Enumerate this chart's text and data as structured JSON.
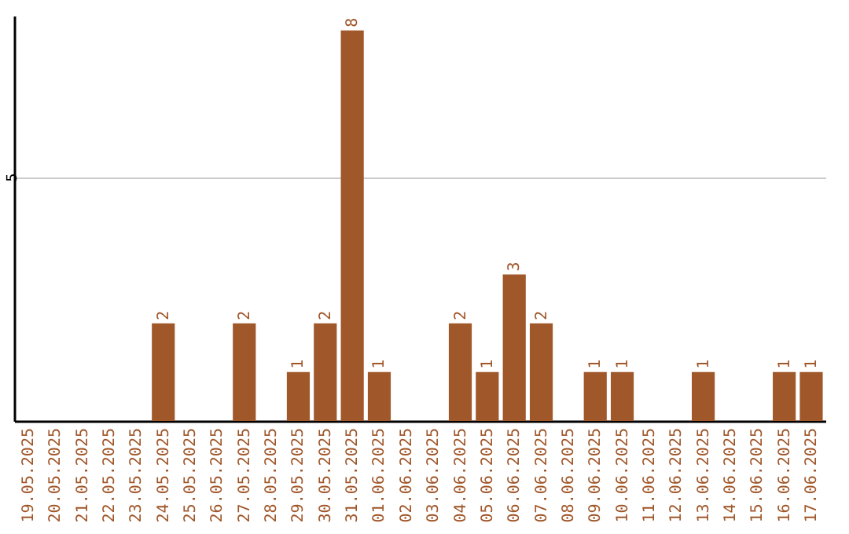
{
  "chart_data": {
    "type": "bar",
    "categories": [
      "19.05.2025",
      "20.05.2025",
      "21.05.2025",
      "22.05.2025",
      "23.05.2025",
      "24.05.2025",
      "25.05.2025",
      "26.05.2025",
      "27.05.2025",
      "28.05.2025",
      "29.05.2025",
      "30.05.2025",
      "31.05.2025",
      "01.06.2025",
      "02.06.2025",
      "03.06.2025",
      "04.06.2025",
      "05.06.2025",
      "06.06.2025",
      "07.06.2025",
      "08.06.2025",
      "09.06.2025",
      "10.06.2025",
      "11.06.2025",
      "12.06.2025",
      "13.06.2025",
      "14.06.2025",
      "15.06.2025",
      "16.06.2025",
      "17.06.2025"
    ],
    "values": [
      0,
      0,
      0,
      0,
      0,
      2,
      0,
      0,
      2,
      0,
      1,
      2,
      8,
      1,
      0,
      0,
      2,
      1,
      3,
      2,
      0,
      1,
      1,
      0,
      0,
      1,
      0,
      0,
      1,
      1
    ],
    "value_labels": [
      null,
      null,
      null,
      null,
      null,
      "2",
      null,
      null,
      "2",
      null,
      "1",
      "2",
      "8",
      "1",
      null,
      null,
      "2",
      "1",
      "3",
      "2",
      null,
      "1",
      "1",
      null,
      null,
      "1",
      null,
      null,
      "1",
      "1"
    ],
    "color": "#a0572a",
    "ylim": [
      0,
      8.3
    ],
    "yticks": [
      5
    ],
    "grid": "y"
  }
}
